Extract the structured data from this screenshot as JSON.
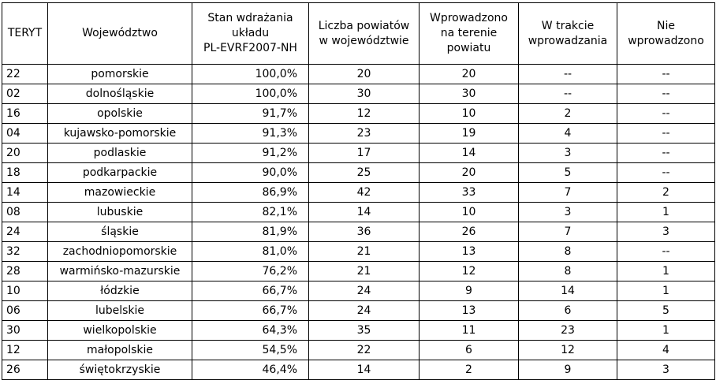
{
  "table": {
    "headers": [
      [
        "TERYT"
      ],
      [
        "Województwo"
      ],
      [
        "Stan wdrażania",
        "układu",
        "PL-EVRF2007-NH"
      ],
      [
        "Liczba powiatów",
        "w województwie"
      ],
      [
        "Wprowadzono",
        "na terenie",
        "powiatu"
      ],
      [
        "W trakcie",
        "wprowadzania"
      ],
      [
        "Nie",
        "wprowadzono"
      ]
    ],
    "rows": [
      [
        "22",
        "pomorskie",
        "100,0%",
        "20",
        "20",
        "--",
        "--"
      ],
      [
        "02",
        "dolnośląskie",
        "100,0%",
        "30",
        "30",
        "--",
        "--"
      ],
      [
        "16",
        "opolskie",
        "91,7%",
        "12",
        "10",
        "2",
        "--"
      ],
      [
        "04",
        "kujawsko-pomorskie",
        "91,3%",
        "23",
        "19",
        "4",
        "--"
      ],
      [
        "20",
        "podlaskie",
        "91,2%",
        "17",
        "14",
        "3",
        "--"
      ],
      [
        "18",
        "podkarpackie",
        "90,0%",
        "25",
        "20",
        "5",
        "--"
      ],
      [
        "14",
        "mazowieckie",
        "86,9%",
        "42",
        "33",
        "7",
        "2"
      ],
      [
        "08",
        "lubuskie",
        "82,1%",
        "14",
        "10",
        "3",
        "1"
      ],
      [
        "24",
        "śląskie",
        "81,9%",
        "36",
        "26",
        "7",
        "3"
      ],
      [
        "32",
        "zachodniopomorskie",
        "81,0%",
        "21",
        "13",
        "8",
        "--"
      ],
      [
        "28",
        "warmińsko-mazurskie",
        "76,2%",
        "21",
        "12",
        "8",
        "1"
      ],
      [
        "10",
        "łódzkie",
        "66,7%",
        "24",
        "9",
        "14",
        "1"
      ],
      [
        "06",
        "lubelskie",
        "66,7%",
        "24",
        "13",
        "6",
        "5"
      ],
      [
        "30",
        "wielkopolskie",
        "64,3%",
        "35",
        "11",
        "23",
        "1"
      ],
      [
        "12",
        "małopolskie",
        "54,5%",
        "22",
        "6",
        "12",
        "4"
      ],
      [
        "26",
        "świętokrzyskie",
        "46,4%",
        "14",
        "2",
        "9",
        "3"
      ]
    ]
  }
}
